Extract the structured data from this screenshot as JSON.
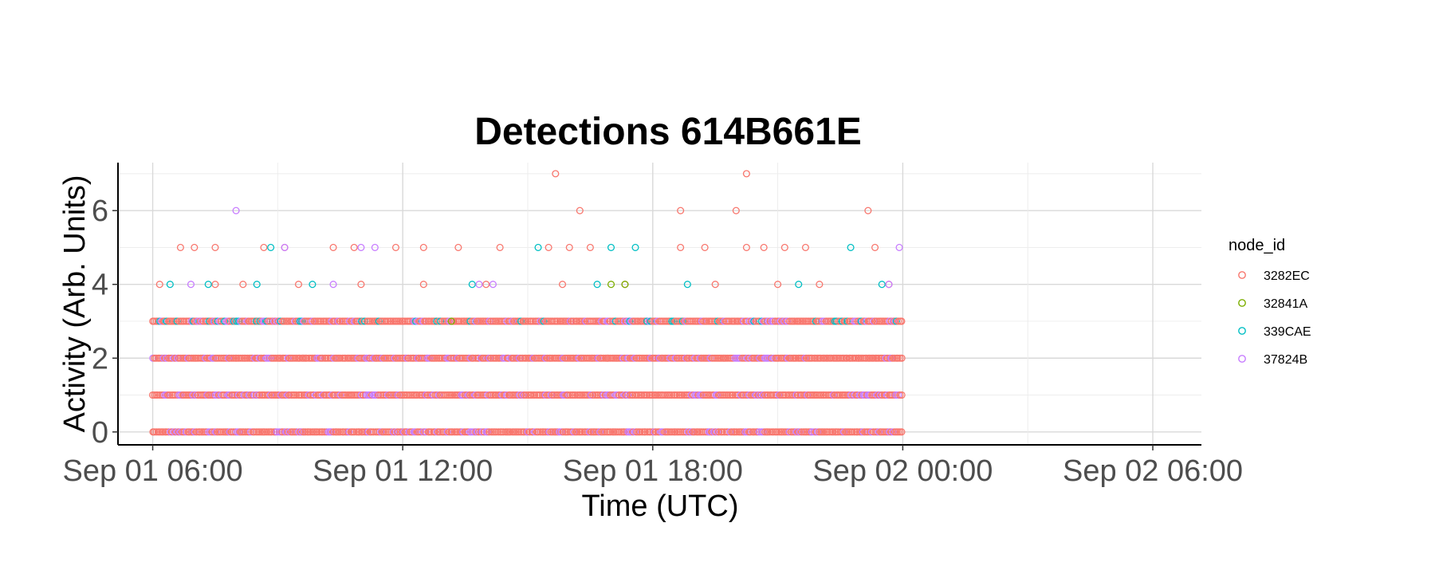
{
  "chart_data": {
    "type": "scatter",
    "title": "Detections 614B661E",
    "xlabel": "Time (UTC)",
    "ylabel": "Activity (Arb. Units)",
    "x_ticks": [
      "Sep 01 06:00",
      "Sep 01 12:00",
      "Sep 01 18:00",
      "Sep 02 00:00",
      "Sep 02 06:00"
    ],
    "x_range": [
      "Sep 01 05:10",
      "Sep 02 07:10"
    ],
    "y_ticks": [
      "0",
      "2",
      "4",
      "6"
    ],
    "ylim": [
      -0.35,
      7.3
    ],
    "grid": true,
    "marker": "open-circle",
    "legend": {
      "title": "node_id",
      "placement": "right",
      "entries": [
        {
          "name": "3282EC",
          "color": "#F8766D"
        },
        {
          "name": "32841A",
          "color": "#7CAE00"
        },
        {
          "name": "339CAE",
          "color": "#00BFC4"
        },
        {
          "name": "37824B",
          "color": "#C77CFF"
        }
      ]
    },
    "data_time_range": [
      "Sep 01 06:00",
      "Sep 02 00:00"
    ],
    "dense_levels": [
      {
        "y": 0,
        "series": [
          "3282EC",
          "37824B"
        ],
        "from": "Sep 01 06:00",
        "to": "Sep 02 00:00"
      },
      {
        "y": 1,
        "series": [
          "3282EC",
          "37824B"
        ],
        "from": "Sep 01 06:00",
        "to": "Sep 02 00:00"
      },
      {
        "y": 2,
        "series": [
          "3282EC",
          "37824B"
        ],
        "from": "Sep 01 06:00",
        "to": "Sep 02 00:00"
      },
      {
        "y": 3,
        "series": [
          "3282EC",
          "339CAE",
          "37824B"
        ],
        "from": "Sep 01 06:00",
        "to": "Sep 02 00:00"
      }
    ],
    "series": [
      {
        "name": "3282EC",
        "points": [
          {
            "x": "Sep 01 06:10",
            "y": 4
          },
          {
            "x": "Sep 01 06:40",
            "y": 5
          },
          {
            "x": "Sep 01 07:00",
            "y": 5
          },
          {
            "x": "Sep 01 07:30",
            "y": 5
          },
          {
            "x": "Sep 01 08:40",
            "y": 5
          },
          {
            "x": "Sep 01 09:10",
            "y": 5
          },
          {
            "x": "Sep 01 10:20",
            "y": 5
          },
          {
            "x": "Sep 01 10:50",
            "y": 5
          },
          {
            "x": "Sep 01 11:50",
            "y": 5
          },
          {
            "x": "Sep 01 12:30",
            "y": 5
          },
          {
            "x": "Sep 01 13:20",
            "y": 5
          },
          {
            "x": "Sep 01 14:20",
            "y": 5
          },
          {
            "x": "Sep 01 15:40",
            "y": 7
          },
          {
            "x": "Sep 01 16:15",
            "y": 6
          },
          {
            "x": "Sep 01 15:30",
            "y": 5
          },
          {
            "x": "Sep 01 16:00",
            "y": 5
          },
          {
            "x": "Sep 01 16:30",
            "y": 5
          },
          {
            "x": "Sep 01 18:40",
            "y": 6
          },
          {
            "x": "Sep 01 18:40",
            "y": 5
          },
          {
            "x": "Sep 01 19:15",
            "y": 5
          },
          {
            "x": "Sep 01 20:00",
            "y": 6
          },
          {
            "x": "Sep 01 20:15",
            "y": 7
          },
          {
            "x": "Sep 01 20:15",
            "y": 5
          },
          {
            "x": "Sep 01 20:40",
            "y": 5
          },
          {
            "x": "Sep 01 21:10",
            "y": 5
          },
          {
            "x": "Sep 01 21:40",
            "y": 5
          },
          {
            "x": "Sep 01 23:10",
            "y": 6
          },
          {
            "x": "Sep 01 23:20",
            "y": 5
          },
          {
            "x": "Sep 01 07:30",
            "y": 4
          },
          {
            "x": "Sep 01 08:10",
            "y": 4
          },
          {
            "x": "Sep 01 09:30",
            "y": 4
          },
          {
            "x": "Sep 01 11:00",
            "y": 4
          },
          {
            "x": "Sep 01 12:30",
            "y": 4
          },
          {
            "x": "Sep 01 14:00",
            "y": 4
          },
          {
            "x": "Sep 01 15:50",
            "y": 4
          },
          {
            "x": "Sep 01 17:20",
            "y": 4
          },
          {
            "x": "Sep 01 19:30",
            "y": 4
          },
          {
            "x": "Sep 01 21:00",
            "y": 4
          },
          {
            "x": "Sep 01 22:00",
            "y": 4
          },
          {
            "x": "Sep 01 23:40",
            "y": 4
          }
        ]
      },
      {
        "name": "32841A",
        "points": [
          {
            "x": "Sep 01 17:00",
            "y": 4
          },
          {
            "x": "Sep 01 17:20",
            "y": 4
          },
          {
            "x": "Sep 01 13:10",
            "y": 3
          }
        ]
      },
      {
        "name": "339CAE",
        "points": [
          {
            "x": "Sep 01 06:25",
            "y": 4
          },
          {
            "x": "Sep 01 07:20",
            "y": 4
          },
          {
            "x": "Sep 01 08:30",
            "y": 4
          },
          {
            "x": "Sep 01 08:50",
            "y": 5
          },
          {
            "x": "Sep 01 09:50",
            "y": 4
          },
          {
            "x": "Sep 01 13:40",
            "y": 4
          },
          {
            "x": "Sep 01 15:15",
            "y": 5
          },
          {
            "x": "Sep 01 16:40",
            "y": 4
          },
          {
            "x": "Sep 01 17:00",
            "y": 5
          },
          {
            "x": "Sep 01 17:35",
            "y": 5
          },
          {
            "x": "Sep 01 18:50",
            "y": 4
          },
          {
            "x": "Sep 01 21:30",
            "y": 4
          },
          {
            "x": "Sep 01 22:45",
            "y": 5
          },
          {
            "x": "Sep 01 23:30",
            "y": 4
          }
        ]
      },
      {
        "name": "37824B",
        "points": [
          {
            "x": "Sep 01 08:00",
            "y": 6
          },
          {
            "x": "Sep 01 06:55",
            "y": 4
          },
          {
            "x": "Sep 01 09:10",
            "y": 5
          },
          {
            "x": "Sep 01 10:20",
            "y": 4
          },
          {
            "x": "Sep 01 11:00",
            "y": 5
          },
          {
            "x": "Sep 01 11:20",
            "y": 5
          },
          {
            "x": "Sep 01 13:50",
            "y": 4
          },
          {
            "x": "Sep 01 14:10",
            "y": 4
          },
          {
            "x": "Sep 01 23:40",
            "y": 4
          },
          {
            "x": "Sep 01 23:55",
            "y": 5
          }
        ]
      }
    ]
  }
}
